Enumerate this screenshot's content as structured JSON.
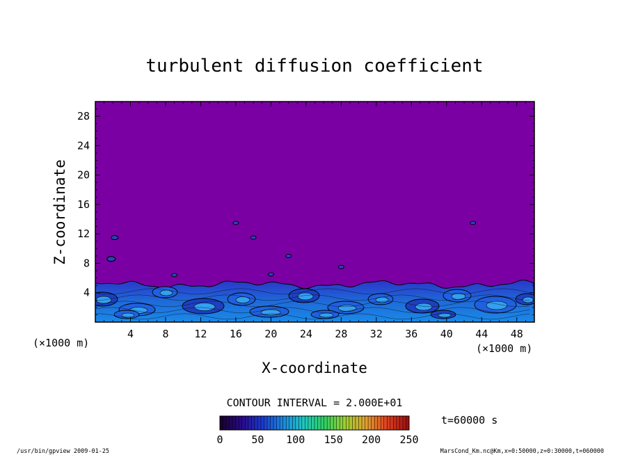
{
  "chart_data": {
    "type": "heatmap",
    "title": "turbulent diffusion coefficient",
    "xlabel": "X-coordinate",
    "ylabel": "Z-coordinate",
    "x_unit": "(×1000 m)",
    "y_unit": "(×1000 m)",
    "xlim": [
      0,
      50
    ],
    "ylim": [
      0,
      30
    ],
    "x_ticks": [
      4,
      8,
      12,
      16,
      20,
      24,
      28,
      32,
      36,
      40,
      44,
      48
    ],
    "y_ticks": [
      4,
      8,
      12,
      16,
      20,
      24,
      28
    ],
    "background_color": "#7b00a4",
    "turbulent_layer_top_km": 5.5,
    "contour_interval_text": "CONTOUR INTERVAL = 2.000E+01",
    "time_label": "t=60000 s",
    "colorbar": {
      "min": 0,
      "max": 250,
      "tick_labels": [
        0,
        50,
        100,
        150,
        200,
        250
      ],
      "colors": [
        "#1a0030",
        "#2a0a8a",
        "#1a3ad0",
        "#1a8ae0",
        "#20c8c0",
        "#30d060",
        "#a0d030",
        "#e0a030",
        "#e04020",
        "#a01010"
      ]
    }
  },
  "footer": {
    "left": "/usr/bin/gpview  2009-01-25",
    "right": "MarsCond_Km.nc@Km,x=0:50000,z=0:30000,t=060000"
  }
}
